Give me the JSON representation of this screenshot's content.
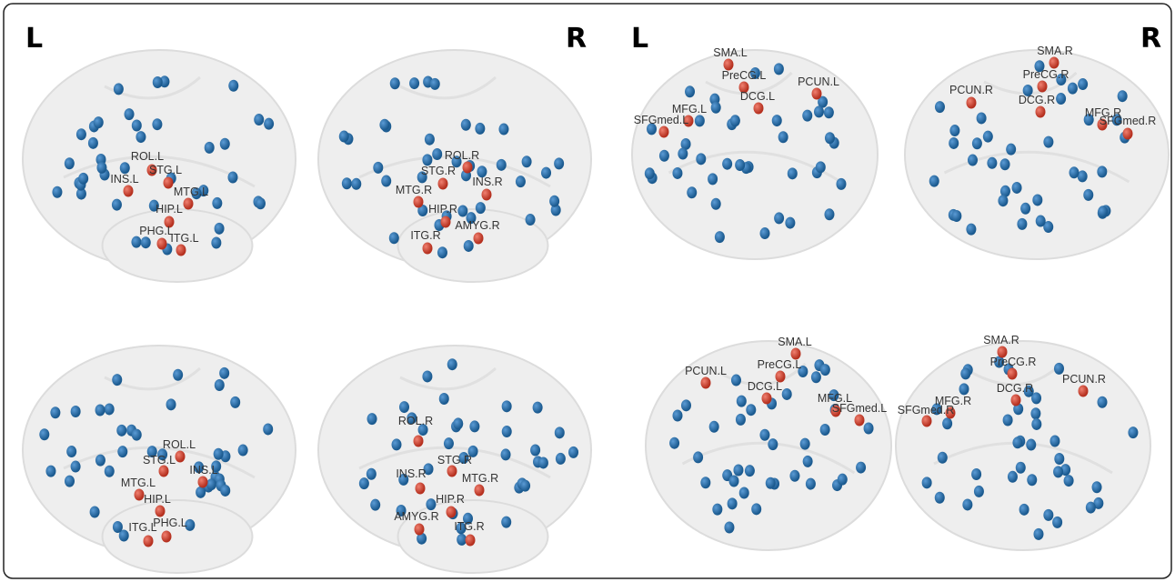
{
  "left_figure": {
    "side_labels": [
      "L",
      "R"
    ],
    "panels": [
      {
        "nodes": [
          "ROL.L",
          "STG.L",
          "INS.L",
          "MTG.L",
          "HIP.L",
          "PHG.L",
          "ITG.L"
        ]
      },
      {
        "nodes": [
          "ROL.R",
          "STG.R",
          "INS.R",
          "MTG.R",
          "HIP.R",
          "AMYG.R",
          "ITG.R"
        ]
      },
      {
        "nodes": [
          "ROL.L",
          "STG.L",
          "INS.L",
          "MTG.L",
          "HIP.L",
          "PHG.L",
          "ITG.L"
        ]
      },
      {
        "nodes": [
          "ROL.R",
          "STG.R",
          "INS.R",
          "MTG.R",
          "HIP.R",
          "AMYG.R",
          "ITG.R"
        ]
      }
    ]
  },
  "right_figure": {
    "side_labels": [
      "L",
      "R"
    ],
    "panels": [
      {
        "nodes": [
          "SMA.L",
          "PreCG.L",
          "DCG.L",
          "PCUN.L",
          "MFG.L",
          "SFGmed.L"
        ]
      },
      {
        "nodes": [
          "SMA.R",
          "PreCG.R",
          "DCG.R",
          "PCUN.R",
          "MFG.R",
          "SFGmed.R"
        ]
      },
      {
        "nodes": [
          "SMA.L",
          "PreCG.L",
          "DCG.L",
          "PCUN.L",
          "MFG.L",
          "SFGmed.L"
        ]
      },
      {
        "nodes": [
          "SMA.R",
          "PreCG.R",
          "DCG.R",
          "PCUN.R",
          "MFG.R",
          "SFGmed.R"
        ]
      }
    ]
  }
}
